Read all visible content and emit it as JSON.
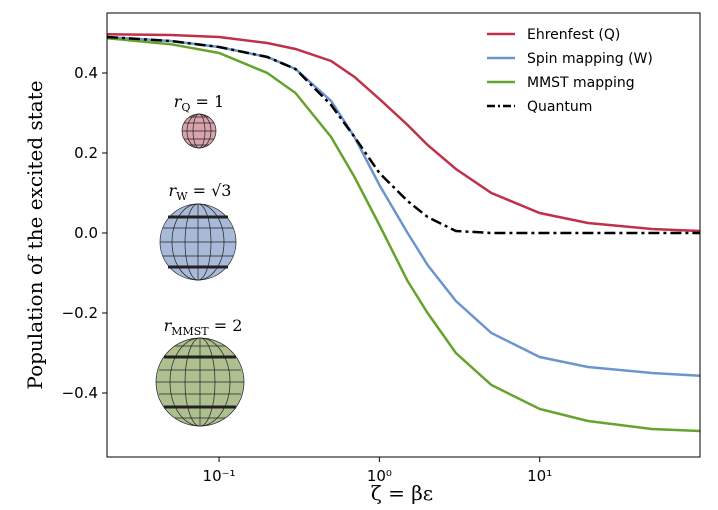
{
  "chart_data": {
    "type": "line",
    "xlabel": "ζ = βε",
    "ylabel": "Population of the excited state",
    "x": [
      0.02,
      0.05,
      0.1,
      0.2,
      0.3,
      0.5,
      0.7,
      1,
      1.5,
      2,
      3,
      5,
      10,
      20,
      50,
      100
    ],
    "series": [
      {
        "name": "Ehrenfest (Q)",
        "color": "#c0304a",
        "style": "solid",
        "values": [
          0.497,
          0.495,
          0.49,
          0.475,
          0.46,
          0.43,
          0.39,
          0.335,
          0.27,
          0.22,
          0.16,
          0.1,
          0.05,
          0.025,
          0.01,
          0.005
        ]
      },
      {
        "name": "Spin mapping (W)",
        "color": "#6b95cc",
        "style": "solid",
        "values": [
          0.49,
          0.48,
          0.465,
          0.44,
          0.41,
          0.33,
          0.24,
          0.12,
          0.0,
          -0.08,
          -0.17,
          -0.25,
          -0.31,
          -0.335,
          -0.35,
          -0.357
        ]
      },
      {
        "name": "MMST mapping",
        "color": "#66a32e",
        "style": "solid",
        "values": [
          0.487,
          0.472,
          0.45,
          0.4,
          0.35,
          0.24,
          0.14,
          0.02,
          -0.12,
          -0.2,
          -0.3,
          -0.38,
          -0.44,
          -0.47,
          -0.49,
          -0.495
        ]
      },
      {
        "name": "Quantum",
        "color": "#000000",
        "style": "dashdot",
        "values": [
          0.49,
          0.48,
          0.465,
          0.44,
          0.41,
          0.32,
          0.24,
          0.15,
          0.08,
          0.04,
          0.005,
          0.0,
          0.0,
          0.0,
          0.0,
          0.0
        ]
      }
    ],
    "xscale": "log",
    "xlim": [
      0.02,
      100
    ],
    "xticks": [
      {
        "value": 0.1,
        "label": "10⁻¹"
      },
      {
        "value": 1,
        "label": "10⁰"
      },
      {
        "value": 10,
        "label": "10¹"
      }
    ],
    "ylim": [
      -0.56,
      0.55
    ],
    "yticks": [
      0.4,
      0.2,
      {
        "value": 0,
        "label": "0.0"
      },
      {
        "value": -0.2,
        "label": "−0.2"
      },
      {
        "value": -0.4,
        "label": "−0.4"
      }
    ],
    "legend": "upper right",
    "annotations": [
      {
        "base": "r",
        "sub": "Q",
        "rhs": " = 1"
      },
      {
        "base": "r",
        "sub": "W",
        "rhs": " = √3"
      },
      {
        "base": "r",
        "sub": "MMST",
        "rhs": " = 2"
      }
    ]
  }
}
